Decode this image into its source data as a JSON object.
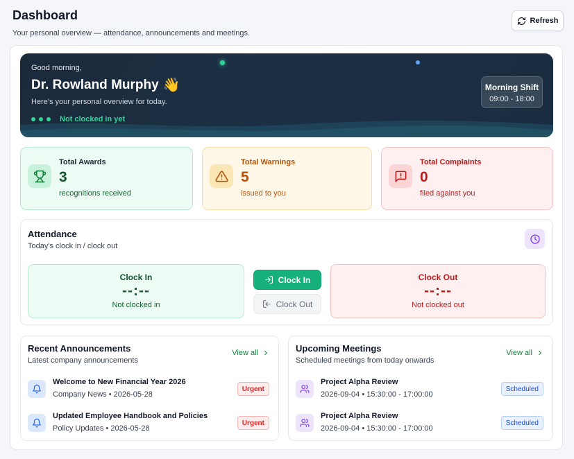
{
  "header": {
    "title": "Dashboard",
    "subtitle": "Your personal overview — attendance, announcements and meetings.",
    "refresh_label": "Refresh"
  },
  "hero": {
    "greeting": "Good morning,",
    "name": "Dr. Rowland Murphy",
    "emoji": "👋",
    "subtitle": "Here's your personal overview for today.",
    "status": "Not clocked in yet",
    "shift_title": "Morning Shift",
    "shift_time": "09:00 - 18:00"
  },
  "stats": {
    "awards": {
      "label": "Total Awards",
      "value": "3",
      "desc": "recognitions received"
    },
    "warnings": {
      "label": "Total Warnings",
      "value": "5",
      "desc": "issued to you"
    },
    "complaints": {
      "label": "Total Complaints",
      "value": "0",
      "desc": "filed against you"
    }
  },
  "attendance": {
    "title": "Attendance",
    "subtitle": "Today's clock in / clock out",
    "clock_in": {
      "label": "Clock In",
      "time": "--:--",
      "status": "Not clocked in"
    },
    "clock_out": {
      "label": "Clock Out",
      "time": "--:--",
      "status": "Not clocked out"
    },
    "clock_in_button": "Clock In",
    "clock_out_button": "Clock Out"
  },
  "announcements": {
    "title": "Recent Announcements",
    "subtitle": "Latest company announcements",
    "view_all": "View all",
    "items": [
      {
        "title": "Welcome to New Financial Year 2026",
        "meta": "Company News • 2026-05-28",
        "badge": "Urgent"
      },
      {
        "title": "Updated Employee Handbook and Policies",
        "meta": "Policy Updates • 2026-05-28",
        "badge": "Urgent"
      }
    ]
  },
  "meetings": {
    "title": "Upcoming Meetings",
    "subtitle": "Scheduled meetings from today onwards",
    "view_all": "View all",
    "items": [
      {
        "title": "Project Alpha Review",
        "meta": "2026-09-04 • 15:30:00 - 17:00:00",
        "badge": "Scheduled"
      },
      {
        "title": "Project Alpha Review",
        "meta": "2026-09-04 • 15:30:00 - 17:00:00",
        "badge": "Scheduled"
      }
    ]
  },
  "colors": {
    "accent_green": "#16b07a",
    "hero_bg": "#1b2a3b",
    "warning": "#b45309",
    "danger": "#b91c1c"
  }
}
